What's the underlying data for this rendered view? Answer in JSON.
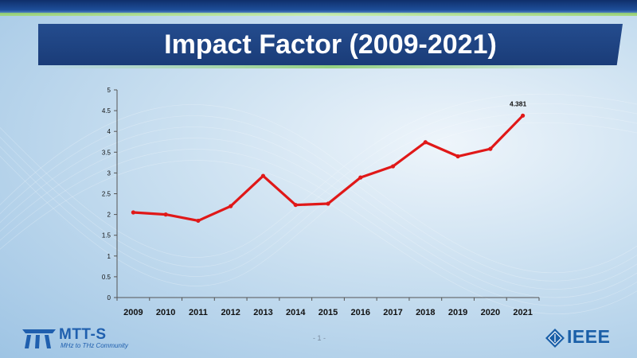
{
  "slide": {
    "title": "Impact Factor (2009-2021)",
    "page_number": "- 1 -",
    "logos": {
      "left_name": "MTT-S",
      "left_tagline": "MHz to THz Community",
      "right_name": "IEEE"
    }
  },
  "colors": {
    "line": "#e01818",
    "title_band": "#1f4585",
    "logo_blue": "#1f5fae"
  },
  "chart_data": {
    "type": "line",
    "title": "",
    "xlabel": "",
    "ylabel": "",
    "categories": [
      "2009",
      "2010",
      "2011",
      "2012",
      "2013",
      "2014",
      "2015",
      "2016",
      "2017",
      "2018",
      "2019",
      "2020",
      "2021"
    ],
    "series": [
      {
        "values": [
          2.05,
          2.0,
          1.85,
          2.2,
          2.93,
          2.23,
          2.26,
          2.89,
          3.16,
          3.74,
          3.4,
          3.58,
          4.381
        ]
      }
    ],
    "ylim": [
      0,
      5
    ],
    "yticks": [
      "0",
      "0.5",
      "1",
      "1.5",
      "2",
      "2.5",
      "3",
      "3.5",
      "4",
      "4.5",
      "5"
    ],
    "data_labels": [
      {
        "index": 12,
        "text": "4.381"
      }
    ],
    "grid": false,
    "legend": "none"
  }
}
